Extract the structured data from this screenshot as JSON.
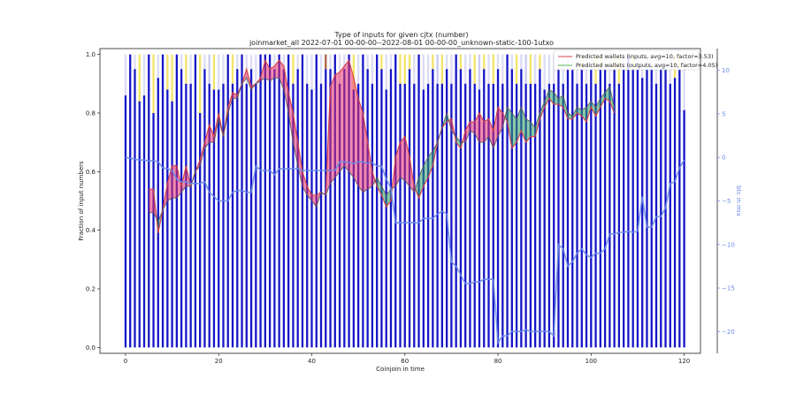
{
  "chart_data": {
    "type": "bar",
    "title": "Type of inputs for given cjtx (number)",
    "subtitle": "joinmarket_all 2022-07-01 00-00-00--2022-08-01 00-00-00_unknown-static-100-1utxo",
    "xlabel": "Coinjoin in time",
    "ylabel": "Fraction of input numbers",
    "y2label": "btc in mix",
    "xlim": [
      -5.5,
      123.5
    ],
    "ylim": [
      -0.02,
      1.02
    ],
    "y2lim": [
      -22.5,
      12.5
    ],
    "x_ticks": [
      0,
      20,
      40,
      60,
      80,
      100,
      120
    ],
    "x_tick_labels": [
      "0",
      "20",
      "40",
      "60",
      "80",
      "100",
      "120"
    ],
    "y_ticks": [
      0.0,
      0.2,
      0.4,
      0.6,
      0.8,
      1.0
    ],
    "y_tick_labels": [
      "0.0",
      "0.2",
      "0.4",
      "0.6",
      "0.8",
      "1.0"
    ],
    "y2_ticks": [
      -20,
      -15,
      -10,
      -5,
      0,
      5,
      10
    ],
    "y2_tick_labels": [
      "−20",
      "−15",
      "−10",
      "−5",
      "0",
      "5",
      "10"
    ],
    "grid": false,
    "legend": {
      "position": "top-right",
      "entries": [
        {
          "label": "Predicted wallets (inputs, avg=10, factor=3.53)",
          "color": "#e06060"
        },
        {
          "label": "Predicted wallets (outputs, avg=10, factor=4.05)",
          "color": "#70c070"
        }
      ]
    },
    "colors": {
      "bars_primary": "#1515c8",
      "bars_secondary": "#c4c4ee",
      "bars_top_yellow": "#f2e05a",
      "bars_top_brown": "#a0522d",
      "inputs_line": "#d84040",
      "outputs_line": "#40a040",
      "fill_inputs_higher": "#e8306a",
      "fill_outputs_higher": "#30a060",
      "btc_line": "#6a8ae8"
    },
    "x": [
      0,
      1,
      2,
      3,
      4,
      5,
      6,
      7,
      8,
      9,
      10,
      11,
      12,
      13,
      14,
      15,
      16,
      17,
      18,
      19,
      20,
      21,
      22,
      23,
      24,
      25,
      26,
      27,
      28,
      29,
      30,
      31,
      32,
      33,
      34,
      35,
      36,
      37,
      38,
      39,
      40,
      41,
      42,
      43,
      44,
      45,
      46,
      47,
      48,
      49,
      50,
      51,
      52,
      53,
      54,
      55,
      56,
      57,
      58,
      59,
      60,
      61,
      62,
      63,
      64,
      65,
      66,
      67,
      68,
      69,
      70,
      71,
      72,
      73,
      74,
      75,
      76,
      77,
      78,
      79,
      80,
      81,
      82,
      83,
      84,
      85,
      86,
      87,
      88,
      89,
      90,
      91,
      92,
      93,
      94,
      95,
      96,
      97,
      98,
      99,
      100,
      101,
      102,
      103,
      104,
      105,
      106,
      107,
      108,
      109,
      110,
      111,
      112,
      113,
      114,
      115,
      116,
      117,
      118,
      119,
      120
    ],
    "bar_fraction": [
      0.86,
      1.0,
      0.95,
      0.84,
      0.86,
      1.0,
      0.8,
      0.92,
      1.0,
      0.88,
      0.84,
      1.0,
      0.95,
      0.9,
      0.9,
      1.0,
      0.8,
      0.95,
      0.9,
      0.88,
      0.88,
      0.9,
      1.0,
      0.9,
      0.95,
      1.0,
      0.9,
      0.95,
      0.9,
      1.0,
      1.0,
      1.0,
      0.95,
      1.0,
      0.95,
      1.0,
      0.9,
      0.95,
      1.0,
      0.9,
      0.88,
      1.0,
      0.9,
      0.95,
      0.95,
      1.0,
      0.9,
      0.95,
      1.0,
      0.88,
      0.9,
      1.0,
      0.95,
      0.9,
      1.0,
      0.95,
      0.88,
      0.95,
      1.0,
      0.9,
      0.9,
      0.95,
      0.9,
      1.0,
      0.88,
      0.9,
      0.95,
      0.9,
      0.9,
      0.95,
      0.9,
      1.0,
      0.95,
      0.9,
      0.95,
      0.9,
      0.88,
      0.95,
      0.9,
      0.9,
      0.95,
      0.9,
      1.0,
      0.95,
      0.9,
      0.95,
      0.9,
      0.9,
      0.9,
      0.95,
      0.88,
      0.9,
      0.9,
      0.95,
      0.9,
      0.95,
      0.95,
      0.9,
      0.95,
      0.9,
      0.95,
      0.9,
      0.95,
      0.95,
      0.9,
      0.95,
      0.9,
      0.95,
      1.0,
      0.95,
      0.95,
      0.92,
      0.95,
      0.95,
      0.9,
      0.95,
      0.95,
      0.9,
      0.92,
      0.95,
      0.81
    ],
    "top_segment": [
      "none",
      "purple",
      "none",
      "yellow",
      "none",
      "none",
      "yellow",
      "none",
      "none",
      "yellow",
      "yellow",
      "purple",
      "none",
      "yellow",
      "none",
      "none",
      "yellow",
      "none",
      "purple",
      "yellow",
      "none",
      "none",
      "brown",
      "yellow",
      "none",
      "none",
      "none",
      "none",
      "none",
      "none",
      "yellow",
      "yellow",
      "none",
      "none",
      "none",
      "none",
      "yellow",
      "none",
      "yellow",
      "none",
      "none",
      "yellow",
      "none",
      "brown",
      "none",
      "none",
      "none",
      "none",
      "none",
      "yellow",
      "none",
      "none",
      "none",
      "none",
      "none",
      "yellow",
      "none",
      "none",
      "none",
      "yellow",
      "yellow",
      "yellow",
      "none",
      "yellow",
      "none",
      "none",
      "yellow",
      "purple",
      "yellow",
      "none",
      "none",
      "none",
      "yellow",
      "none",
      "none",
      "yellow",
      "purple",
      "yellow",
      "none",
      "yellow",
      "none",
      "none",
      "none",
      "none",
      "yellow",
      "none",
      "purple",
      "yellow",
      "none",
      "yellow",
      "none",
      "none",
      "none",
      "none",
      "none",
      "purple",
      "none",
      "none",
      "yellow",
      "none",
      "none",
      "yellow",
      "yellow",
      "none",
      "none",
      "yellow",
      "yellow",
      "none",
      "yellow",
      "yellow",
      "none",
      "none",
      "none",
      "none",
      "none",
      "none",
      "none",
      "none",
      "yellow",
      "yellow",
      "none"
    ],
    "pred_inputs": [
      null,
      null,
      null,
      null,
      null,
      0.54,
      0.54,
      0.39,
      0.47,
      0.56,
      0.62,
      0.62,
      0.55,
      0.62,
      0.55,
      0.6,
      0.64,
      0.7,
      0.76,
      0.72,
      0.8,
      0.72,
      0.82,
      0.87,
      0.86,
      0.9,
      0.95,
      0.89,
      0.9,
      0.92,
      0.98,
      0.95,
      0.96,
      0.98,
      0.96,
      0.87,
      0.8,
      0.7,
      0.6,
      0.55,
      0.52,
      0.52,
      0.53,
      0.52,
      0.89,
      0.93,
      0.94,
      0.96,
      0.98,
      0.92,
      0.85,
      0.8,
      0.7,
      0.6,
      0.55,
      0.52,
      0.48,
      0.5,
      0.65,
      0.7,
      0.72,
      0.65,
      0.55,
      0.51,
      0.55,
      0.58,
      0.62,
      0.7,
      0.75,
      0.77,
      0.78,
      0.7,
      0.68,
      0.74,
      0.77,
      0.77,
      0.8,
      0.77,
      0.78,
      0.74,
      0.82,
      0.8,
      0.77,
      0.68,
      0.7,
      0.74,
      0.7,
      0.72,
      0.72,
      0.78,
      0.82,
      0.85,
      0.83,
      0.83,
      0.82,
      0.78,
      0.78,
      0.8,
      0.79,
      0.77,
      0.82,
      0.79,
      0.82,
      0.85,
      0.84,
      0.8
    ],
    "pred_outputs": [
      null,
      null,
      null,
      null,
      null,
      0.46,
      0.46,
      0.43,
      0.47,
      0.5,
      0.51,
      0.51,
      0.53,
      0.55,
      0.55,
      0.6,
      0.62,
      0.68,
      0.7,
      0.7,
      0.78,
      0.72,
      0.8,
      0.85,
      0.85,
      0.9,
      0.92,
      0.88,
      0.9,
      0.91,
      0.92,
      0.91,
      0.92,
      0.92,
      0.88,
      0.8,
      0.7,
      0.62,
      0.55,
      0.52,
      0.5,
      0.48,
      0.53,
      0.52,
      0.56,
      0.58,
      0.6,
      0.62,
      0.6,
      0.58,
      0.55,
      0.53,
      0.54,
      0.55,
      0.58,
      0.55,
      0.52,
      0.54,
      0.55,
      0.58,
      0.57,
      0.55,
      0.53,
      0.58,
      0.62,
      0.65,
      0.67,
      0.7,
      0.75,
      0.8,
      0.74,
      0.72,
      0.7,
      0.7,
      0.74,
      0.73,
      0.7,
      0.7,
      0.72,
      0.68,
      0.72,
      0.75,
      0.82,
      0.8,
      0.78,
      0.82,
      0.78,
      0.77,
      0.75,
      0.8,
      0.84,
      0.88,
      0.87,
      0.85,
      0.86,
      0.8,
      0.79,
      0.82,
      0.81,
      0.82,
      0.84,
      0.82,
      0.85,
      0.87,
      0.89,
      0.82
    ],
    "btc_in_mix": [
      0.0,
      -0.1,
      -0.2,
      -0.3,
      -0.3,
      -0.4,
      -0.4,
      -0.5,
      -1.2,
      -1.3,
      -1.5,
      -2.5,
      -2.8,
      -2.8,
      -3.0,
      -3.0,
      -3.0,
      -2.8,
      -4.0,
      -4.5,
      -5.0,
      -5.0,
      -5.0,
      -4.0,
      -3.8,
      -3.8,
      -4.0,
      -4.0,
      -1.0,
      -1.5,
      -1.5,
      -1.5,
      -2.0,
      -1.3,
      -1.3,
      -1.3,
      -1.3,
      -1.3,
      -1.5,
      -1.5,
      -1.5,
      -1.5,
      -1.5,
      -1.5,
      -1.5,
      -1.5,
      -0.5,
      -0.5,
      -0.6,
      -0.7,
      -0.5,
      -0.5,
      -0.7,
      -0.6,
      -1.0,
      -1.0,
      -2.5,
      -3.5,
      -7.5,
      -7.5,
      -7.5,
      -7.5,
      -7.5,
      -7.5,
      -7.0,
      -7.0,
      -7.0,
      -6.5,
      -6.2,
      -6.5,
      -12.0,
      -12.5,
      -13.5,
      -14.5,
      -14.5,
      -14.3,
      -14.3,
      -14.0,
      -14.0,
      -14.0,
      -21.3,
      -20.5,
      -20.5,
      -20.0,
      -20.0,
      -20.0,
      -19.8,
      -20.0,
      -20.0,
      -20.0,
      -20.0,
      -20.0,
      -20.5,
      -10.0,
      -10.5,
      -12.5,
      -12.0,
      -11.0,
      -10.5,
      -11.2,
      -11.5,
      -11.0,
      -11.0,
      -10.5,
      -8.8,
      -8.8,
      -8.6,
      -8.6,
      -8.5,
      -8.6,
      -8.5,
      -4.5,
      -8.0,
      -8.0,
      -6.8,
      -6.8,
      -5.8,
      -3.0,
      -2.8,
      -1.2,
      -0.3
    ]
  }
}
